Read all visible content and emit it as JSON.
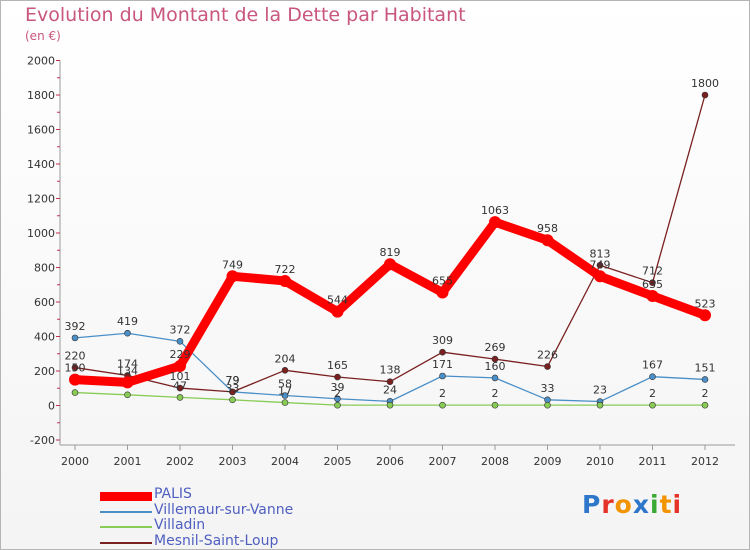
{
  "title": "Evolution du Montant de la Dette par Habitant",
  "subtitle": "(en €)",
  "logo": {
    "text": "Proxiti",
    "colors": [
      "#2d76c9",
      "#e5332a",
      "#f29400",
      "#2d76c9",
      "#3aaa35",
      "#f29400",
      "#e5332a"
    ]
  },
  "chart_data": {
    "type": "line",
    "title": "Evolution du Montant de la Dette par Habitant",
    "subtitle": "(en €)",
    "x": [
      "2000",
      "2001",
      "2002",
      "2003",
      "2004",
      "2005",
      "2006",
      "2007",
      "2008",
      "2009",
      "2010",
      "2011",
      "2012"
    ],
    "ylim": [
      -200,
      2000
    ],
    "yticks": [
      -200,
      0,
      200,
      400,
      600,
      800,
      1000,
      1200,
      1400,
      1600,
      1800,
      2000
    ],
    "grid": false,
    "legend_position": "bottom-left",
    "series": [
      {
        "name": "PALIS",
        "color": "#ff0000",
        "values": [
          150,
          134,
          229,
          749,
          722,
          544,
          819,
          655,
          1063,
          958,
          749,
          635,
          523
        ],
        "labels": [
          "150",
          "134",
          "229",
          "749",
          "722",
          "544",
          "819",
          "655",
          "1063",
          "958",
          "749",
          "635",
          "523"
        ]
      },
      {
        "name": "Villemaur-sur-Vanne",
        "color": "#4a8fc7",
        "values": [
          392,
          419,
          372,
          79,
          58,
          39,
          24,
          171,
          160,
          33,
          23,
          167,
          151
        ],
        "labels": [
          "392",
          "419",
          "372",
          "79",
          "58",
          "39",
          "24",
          "171",
          "160",
          "33",
          "23",
          "167",
          "151"
        ]
      },
      {
        "name": "Villadin",
        "color": "#88cc55",
        "values": [
          75,
          62,
          47,
          33,
          17,
          2,
          2,
          2,
          2,
          2,
          2,
          2,
          2
        ],
        "labels": [
          "",
          "",
          "47",
          "33",
          "17",
          "2",
          "",
          "2",
          "2",
          "",
          "",
          "2",
          "2"
        ]
      },
      {
        "name": "Mesnil-Saint-Loup",
        "color": "#7a2020",
        "values": [
          220,
          174,
          101,
          79,
          204,
          165,
          138,
          309,
          269,
          226,
          813,
          712,
          1800
        ],
        "labels": [
          "220",
          "174",
          "101",
          "79",
          "204",
          "165",
          "138",
          "309",
          "269",
          "226",
          "813",
          "712",
          "1800"
        ]
      }
    ]
  }
}
